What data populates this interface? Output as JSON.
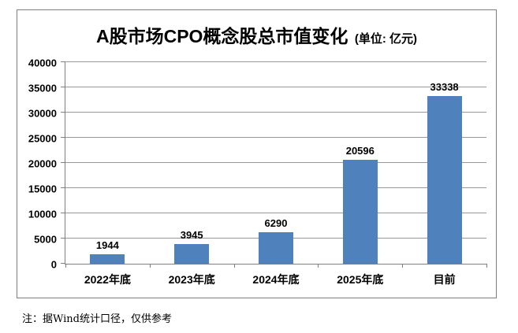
{
  "chart_data": {
    "type": "bar",
    "title": "A股市场CPO概念股总市值变化",
    "title_unit": "(单位: 亿元)",
    "categories": [
      "2022年底",
      "2023年底",
      "2024年底",
      "2025年底",
      "目前"
    ],
    "values": [
      1944,
      3945,
      6290,
      20596,
      33338
    ],
    "ylim": [
      0,
      40000
    ],
    "yticks": [
      0,
      5000,
      10000,
      15000,
      20000,
      25000,
      30000,
      35000,
      40000
    ],
    "xlabel": "",
    "ylabel": "",
    "grid": true,
    "legend": "none",
    "bar_color": "#4F81BD",
    "gridline_color": "#989898",
    "axis_color": "#808080",
    "frame_border_color": "#7f7f7f"
  },
  "note": "注：据Wind统计口径，仅供参考"
}
